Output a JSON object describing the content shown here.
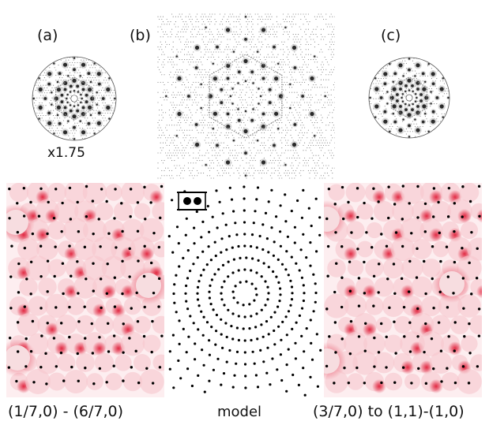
{
  "figure": {
    "panel_labels": {
      "a": "(a)",
      "b": "(b)",
      "c": "(c)"
    },
    "scale_note": "x1.75",
    "captions": {
      "left": "(1/7,0) - (6/7,0)",
      "middle": "model",
      "right": "(3/7,0) to (1,1)-(1,0)"
    },
    "colors": {
      "diffraction_gray": "#2a2a2a",
      "map_red": "#e0203a",
      "map_pink": "#f6c7cd",
      "atom_dot": "#000000"
    }
  }
}
